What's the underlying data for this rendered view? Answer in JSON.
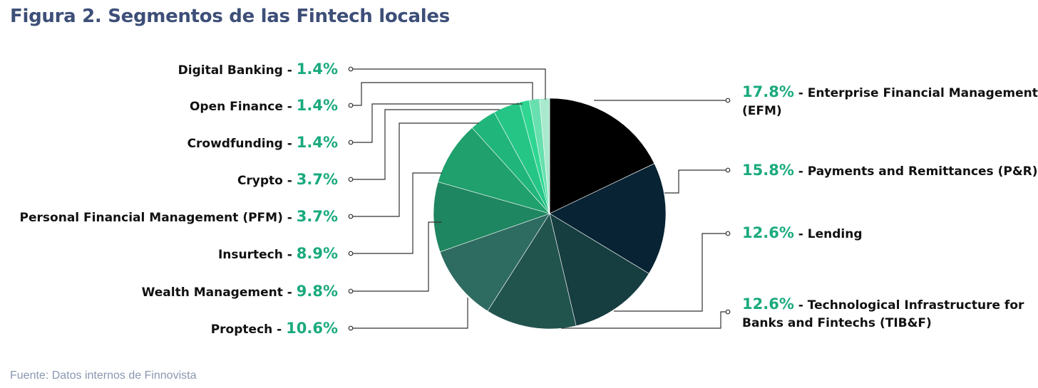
{
  "title": "Figura 2. Segmentos de las Fintech locales",
  "source": "Fuente: Datos internos de Finnovista",
  "separator": " - ",
  "colors": {
    "title": "#3d4f78",
    "percent": "#1aaa7e",
    "source": "#8a97b0"
  },
  "chart_data": {
    "type": "pie",
    "title": "Figura 2. Segmentos de las Fintech locales",
    "start": "12 o'clock, clockwise",
    "slices": [
      {
        "label": "Enterprise Financial Management (EFM)",
        "label_lines": [
          "Enterprise Financial Management",
          "(EFM)"
        ],
        "value": 17.8,
        "pct_text": "17.8%",
        "color": "#000000",
        "side": "right"
      },
      {
        "label": "Payments and Remittances (P&R)",
        "label_lines": [
          "Payments and Remittances (P&R)"
        ],
        "value": 15.8,
        "pct_text": "15.8%",
        "color": "#082333",
        "side": "right"
      },
      {
        "label": "Lending",
        "label_lines": [
          "Lending"
        ],
        "value": 12.6,
        "pct_text": "12.6%",
        "color": "#163d40",
        "side": "right"
      },
      {
        "label": "Technological Infrastructure for Banks and Fintechs (TIB&F)",
        "label_lines": [
          "Technological Infrastructure for",
          "Banks and Fintechs (TIB&F)"
        ],
        "value": 12.6,
        "pct_text": "12.6%",
        "color": "#22544e",
        "side": "right"
      },
      {
        "label": "Proptech",
        "value": 10.6,
        "pct_text": "10.6%",
        "color": "#2e6b60",
        "side": "left"
      },
      {
        "label": "Wealth Management",
        "value": 9.8,
        "pct_text": "9.8%",
        "color": "#1e8660",
        "side": "left"
      },
      {
        "label": "Insurtech",
        "value": 8.9,
        "pct_text": "8.9%",
        "color": "#1fa06d",
        "side": "left"
      },
      {
        "label": "Personal Financial Management (PFM)",
        "value": 3.7,
        "pct_text": "3.7%",
        "color": "#20b57b",
        "side": "left"
      },
      {
        "label": "Crypto",
        "value": 3.7,
        "pct_text": "3.7%",
        "color": "#25c586",
        "side": "left"
      },
      {
        "label": "Crowdfunding",
        "value": 1.4,
        "pct_text": "1.4%",
        "color": "#2fd692",
        "side": "left"
      },
      {
        "label": "Open Finance",
        "value": 1.4,
        "pct_text": "1.4%",
        "color": "#67dfae",
        "side": "left"
      },
      {
        "label": "Digital Banking",
        "value": 1.4,
        "pct_text": "1.4%",
        "color": "#a9e9ce",
        "side": "left"
      }
    ]
  }
}
